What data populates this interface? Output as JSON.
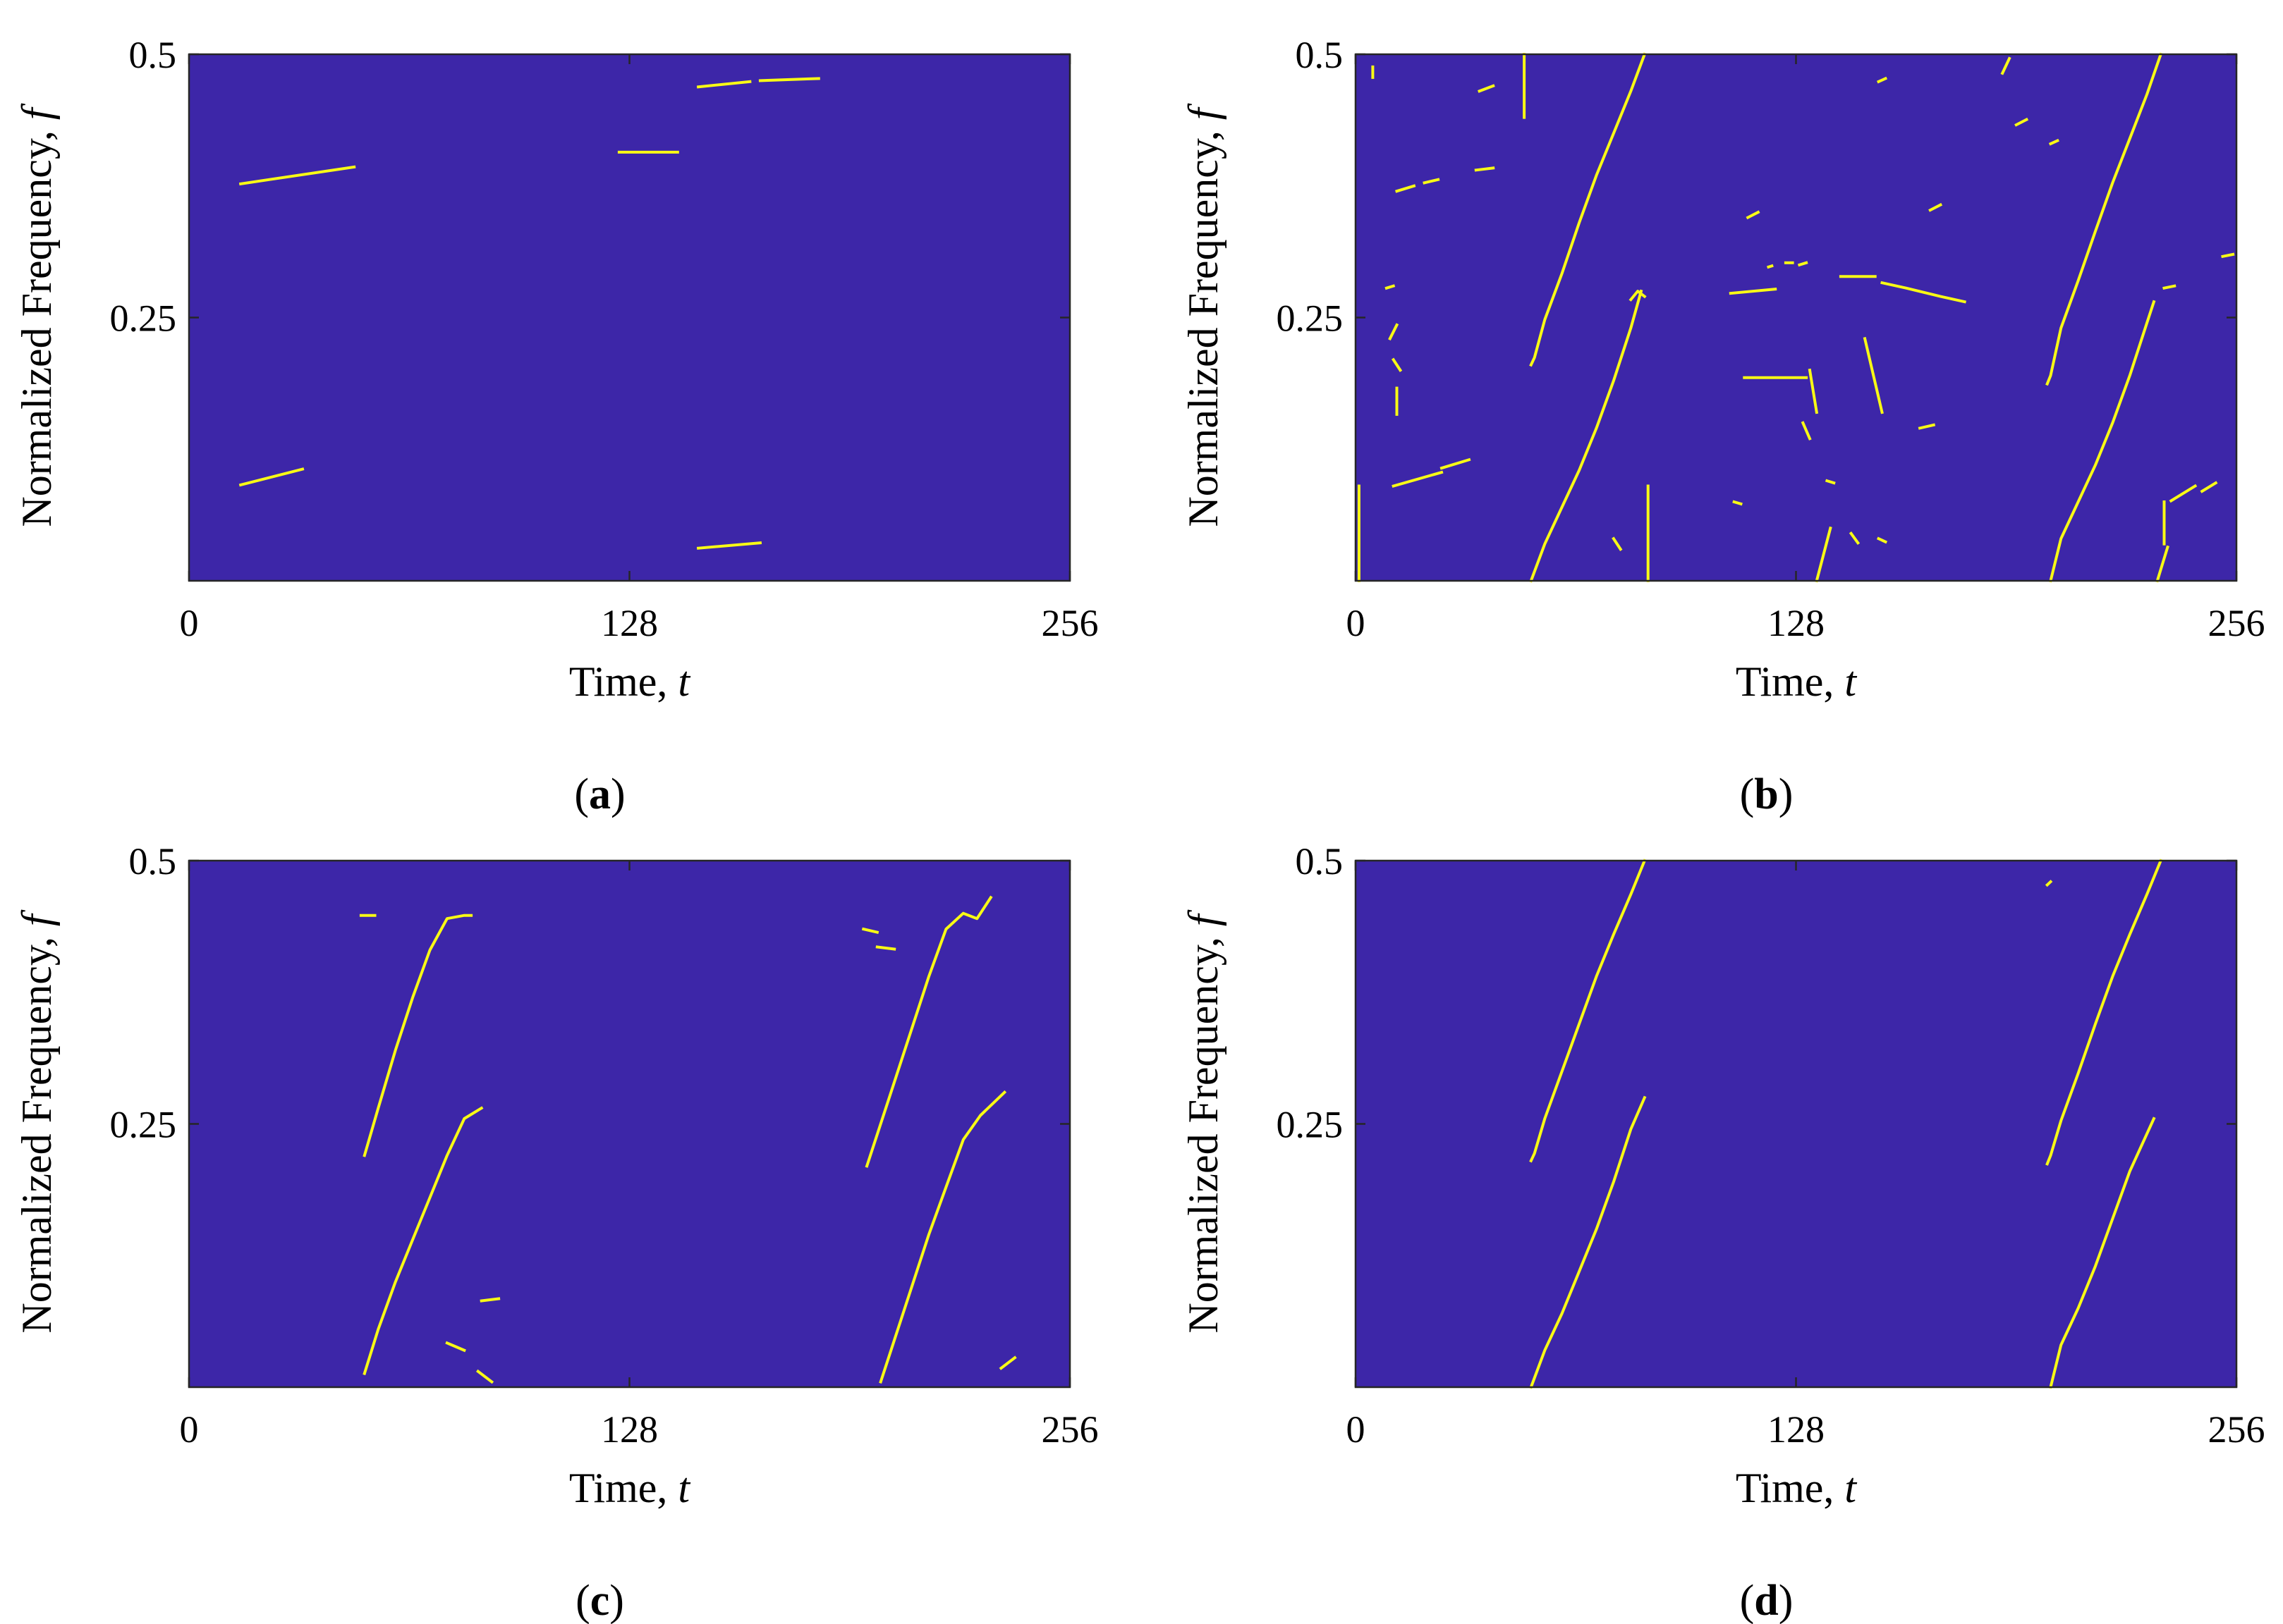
{
  "colors": {
    "background": "#3d26a8",
    "ridge": "#f9fb15",
    "axis": "#262626"
  },
  "chart_data": [
    {
      "type": "heatmap",
      "panel_label": "a",
      "xlabel": "Time, t",
      "ylabel": "Normalized Frequency, f",
      "xlim": [
        0,
        256
      ],
      "ylim": [
        0,
        0.5
      ],
      "xticks": [
        "0",
        "128",
        "256"
      ],
      "yticks": [
        "0.25",
        "0.5"
      ],
      "segments": [
        {
          "x": [
            15,
            48
          ],
          "y": [
            0.377,
            0.393
          ]
        },
        {
          "x": [
            15,
            33
          ],
          "y": [
            0.091,
            0.106
          ]
        },
        {
          "x": [
            125,
            142
          ],
          "y": [
            0.407,
            0.407
          ]
        },
        {
          "x": [
            148,
            163
          ],
          "y": [
            0.469,
            0.474
          ]
        },
        {
          "x": [
            166,
            183
          ],
          "y": [
            0.475,
            0.477
          ]
        },
        {
          "x": [
            148,
            166
          ],
          "y": [
            0.031,
            0.036
          ]
        }
      ]
    },
    {
      "type": "heatmap",
      "panel_label": "b",
      "xlabel": "Time, t",
      "ylabel": "Normalized Frequency, f",
      "xlim": [
        0,
        256
      ],
      "ylim": [
        0,
        0.5
      ],
      "xticks": [
        "0",
        "128",
        "256"
      ],
      "yticks": [
        "0.25",
        "0.5"
      ],
      "segments": [
        {
          "x": [
            51,
            52,
            55,
            60,
            65,
            70,
            75,
            80,
            84
          ],
          "y": [
            0.205,
            0.212,
            0.248,
            0.292,
            0.34,
            0.385,
            0.425,
            0.465,
            0.5
          ]
        },
        {
          "x": [
            51,
            55,
            60,
            65,
            70,
            75,
            80,
            83
          ],
          "y": [
            0.0,
            0.035,
            0.07,
            0.105,
            0.145,
            0.19,
            0.24,
            0.275
          ]
        },
        {
          "x": [
            80,
            82,
            84
          ],
          "y": [
            0.267,
            0.275,
            0.27
          ]
        },
        {
          "x": [
            201,
            202,
            205,
            210,
            215,
            220,
            225,
            230,
            234
          ],
          "y": [
            0.187,
            0.195,
            0.24,
            0.285,
            0.332,
            0.378,
            0.42,
            0.462,
            0.5
          ]
        },
        {
          "x": [
            202,
            205,
            210,
            215,
            220,
            225,
            230,
            232
          ],
          "y": [
            0.0,
            0.04,
            0.075,
            0.11,
            0.15,
            0.195,
            0.245,
            0.265
          ]
        },
        {
          "x": [
            49,
            49
          ],
          "y": [
            0.44,
            0.5
          ]
        },
        {
          "x": [
            85,
            85
          ],
          "y": [
            0.0,
            0.09
          ]
        },
        {
          "x": [
            1,
            1
          ],
          "y": [
            0.0,
            0.09
          ]
        },
        {
          "x": [
            11,
            25
          ],
          "y": [
            0.09,
            0.103
          ]
        },
        {
          "x": [
            25,
            33
          ],
          "y": [
            0.107,
            0.115
          ]
        },
        {
          "x": [
            113,
            131
          ],
          "y": [
            0.193,
            0.193
          ]
        },
        {
          "x": [
            141,
            151
          ],
          "y": [
            0.289,
            0.289
          ]
        },
        {
          "x": [
            153,
            160,
            170,
            177
          ],
          "y": [
            0.283,
            0.278,
            0.27,
            0.265
          ]
        },
        {
          "x": [
            109,
            122
          ],
          "y": [
            0.273,
            0.277
          ]
        },
        {
          "x": [
            134,
            138
          ],
          "y": [
            0.0,
            0.05
          ]
        },
        {
          "x": [
            235,
            235
          ],
          "y": [
            0.035,
            0.075
          ]
        },
        {
          "x": [
            233,
            236
          ],
          "y": [
            0.0,
            0.032
          ]
        },
        {
          "x": [
            188,
            190
          ],
          "y": [
            0.482,
            0.496
          ]
        },
        {
          "x": [
            12,
            17
          ],
          "y": [
            0.37,
            0.375
          ]
        },
        {
          "x": [
            20,
            24
          ],
          "y": [
            0.378,
            0.381
          ]
        },
        {
          "x": [
            35,
            40
          ],
          "y": [
            0.39,
            0.392
          ]
        },
        {
          "x": [
            36,
            40
          ],
          "y": [
            0.465,
            0.47
          ]
        },
        {
          "x": [
            114,
            117
          ],
          "y": [
            0.345,
            0.35
          ]
        },
        {
          "x": [
            129,
            131
          ],
          "y": [
            0.3,
            0.302
          ]
        },
        {
          "x": [
            152,
            154
          ],
          "y": [
            0.474,
            0.477
          ]
        },
        {
          "x": [
            167,
            170
          ],
          "y": [
            0.352,
            0.357
          ]
        },
        {
          "x": [
            192,
            195
          ],
          "y": [
            0.433,
            0.438
          ]
        },
        {
          "x": [
            202,
            204
          ],
          "y": [
            0.415,
            0.418
          ]
        },
        {
          "x": [
            235,
            238
          ],
          "y": [
            0.278,
            0.28
          ]
        },
        {
          "x": [
            252,
            255
          ],
          "y": [
            0.308,
            0.31
          ]
        },
        {
          "x": [
            5,
            5
          ],
          "y": [
            0.478,
            0.488
          ]
        },
        {
          "x": [
            9,
            11
          ],
          "y": [
            0.278,
            0.28
          ]
        },
        {
          "x": [
            10,
            12
          ],
          "y": [
            0.23,
            0.243
          ]
        },
        {
          "x": [
            11,
            13
          ],
          "y": [
            0.21,
            0.2
          ]
        },
        {
          "x": [
            12,
            12
          ],
          "y": [
            0.158,
            0.183
          ]
        },
        {
          "x": [
            132,
            134
          ],
          "y": [
            0.2,
            0.16
          ]
        },
        {
          "x": [
            130,
            132
          ],
          "y": [
            0.15,
            0.135
          ]
        },
        {
          "x": [
            148,
            153
          ],
          "y": [
            0.23,
            0.16
          ]
        },
        {
          "x": [
            164,
            168
          ],
          "y": [
            0.145,
            0.148
          ]
        },
        {
          "x": [
            137,
            139
          ],
          "y": [
            0.095,
            0.093
          ]
        },
        {
          "x": [
            110,
            112
          ],
          "y": [
            0.075,
            0.073
          ]
        },
        {
          "x": [
            75,
            77
          ],
          "y": [
            0.04,
            0.03
          ]
        },
        {
          "x": [
            237,
            244
          ],
          "y": [
            0.076,
            0.09
          ]
        },
        {
          "x": [
            246,
            250
          ],
          "y": [
            0.085,
            0.093
          ]
        },
        {
          "x": [
            125,
            127
          ],
          "y": [
            0.302,
            0.302
          ]
        },
        {
          "x": [
            120,
            121
          ],
          "y": [
            0.298,
            0.299
          ]
        },
        {
          "x": [
            144,
            146
          ],
          "y": [
            0.045,
            0.036
          ]
        },
        {
          "x": [
            152,
            154
          ],
          "y": [
            0.04,
            0.037
          ]
        }
      ]
    },
    {
      "type": "heatmap",
      "panel_label": "c",
      "xlabel": "Time, t",
      "ylabel": "Normalized Frequency, f",
      "xlim": [
        0,
        256
      ],
      "ylim": [
        0,
        0.5
      ],
      "xticks": [
        "0",
        "128",
        "256"
      ],
      "yticks": [
        "0.25",
        "0.5"
      ],
      "segments": [
        {
          "x": [
            51,
            55,
            60,
            65,
            70,
            75,
            80,
            82
          ],
          "y": [
            0.22,
            0.265,
            0.32,
            0.37,
            0.415,
            0.445,
            0.448,
            0.448
          ]
        },
        {
          "x": [
            51,
            55,
            60,
            65,
            70,
            75,
            80,
            85
          ],
          "y": [
            0.013,
            0.055,
            0.1,
            0.14,
            0.18,
            0.22,
            0.255,
            0.265
          ]
        },
        {
          "x": [
            197,
            200,
            205,
            210,
            215,
            220,
            225,
            229,
            233
          ],
          "y": [
            0.21,
            0.24,
            0.29,
            0.34,
            0.39,
            0.435,
            0.45,
            0.445,
            0.465
          ]
        },
        {
          "x": [
            201,
            205,
            210,
            215,
            220,
            225,
            230,
            237
          ],
          "y": [
            0.005,
            0.045,
            0.095,
            0.145,
            0.19,
            0.235,
            0.258,
            0.28
          ]
        },
        {
          "x": [
            50,
            54
          ],
          "y": [
            0.448,
            0.448
          ]
        },
        {
          "x": [
            196,
            200
          ],
          "y": [
            0.435,
            0.432
          ]
        },
        {
          "x": [
            200,
            205
          ],
          "y": [
            0.418,
            0.416
          ]
        },
        {
          "x": [
            85,
            90
          ],
          "y": [
            0.082,
            0.084
          ]
        },
        {
          "x": [
            75,
            80
          ],
          "y": [
            0.042,
            0.035
          ]
        },
        {
          "x": [
            84,
            88
          ],
          "y": [
            0.015,
            0.005
          ]
        },
        {
          "x": [
            236,
            240
          ],
          "y": [
            0.018,
            0.028
          ]
        }
      ]
    },
    {
      "type": "heatmap",
      "panel_label": "d",
      "xlabel": "Time, t",
      "ylabel": "Normalized Frequency, f",
      "xlim": [
        0,
        256
      ],
      "ylim": [
        0,
        0.5
      ],
      "xticks": [
        "0",
        "128",
        "256"
      ],
      "yticks": [
        "0.25",
        "0.5"
      ],
      "segments": [
        {
          "x": [
            51,
            52,
            55,
            60,
            65,
            70,
            75,
            80,
            84
          ],
          "y": [
            0.215,
            0.222,
            0.255,
            0.3,
            0.345,
            0.39,
            0.43,
            0.468,
            0.5
          ]
        },
        {
          "x": [
            51,
            55,
            60,
            65,
            70,
            75,
            80,
            84
          ],
          "y": [
            0.0,
            0.035,
            0.07,
            0.11,
            0.15,
            0.195,
            0.245,
            0.275
          ]
        },
        {
          "x": [
            201,
            202,
            205,
            210,
            215,
            220,
            225,
            230,
            234
          ],
          "y": [
            0.212,
            0.22,
            0.253,
            0.298,
            0.345,
            0.39,
            0.43,
            0.468,
            0.5
          ]
        },
        {
          "x": [
            202,
            205,
            210,
            215,
            220,
            225,
            232
          ],
          "y": [
            0.0,
            0.04,
            0.075,
            0.115,
            0.16,
            0.205,
            0.255
          ]
        },
        {
          "x": [
            201,
            202
          ],
          "y": [
            0.477,
            0.48
          ]
        }
      ]
    }
  ]
}
